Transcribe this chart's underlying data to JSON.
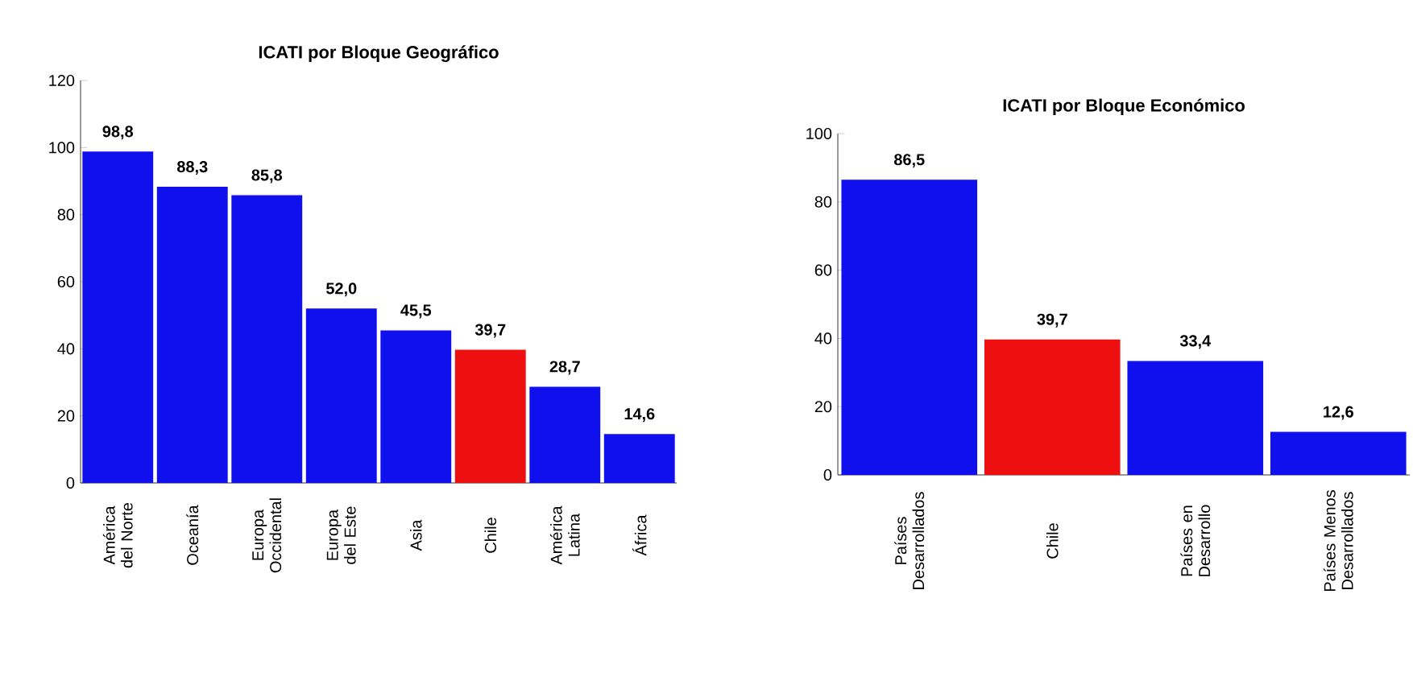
{
  "chart_data": [
    {
      "type": "bar",
      "title": "ICATI por Bloque Geográfico",
      "categories": [
        "América del Norte",
        "Oceanía",
        "Europa Occidental",
        "Europa del Este",
        "Asia",
        "Chile",
        "América Latina",
        "África"
      ],
      "values": [
        98.8,
        88.3,
        85.8,
        52.0,
        45.5,
        39.7,
        28.7,
        14.6
      ],
      "value_labels": [
        "98,8",
        "88,3",
        "85,8",
        "52,0",
        "45,5",
        "39,7",
        "28,7",
        "14,6"
      ],
      "colors": [
        "#1010ee",
        "#1010ee",
        "#1010ee",
        "#1010ee",
        "#1010ee",
        "#ee1010",
        "#1010ee",
        "#1010ee"
      ],
      "ylim": [
        0,
        120
      ],
      "yticks": [
        0,
        20,
        40,
        60,
        80,
        100,
        120
      ]
    },
    {
      "type": "bar",
      "title": "ICATI por Bloque Económico",
      "categories": [
        "Países Desarrollados",
        "Chile",
        "Países en Desarrollo",
        "Países Menos Desarrollados"
      ],
      "values": [
        86.5,
        39.7,
        33.4,
        12.6
      ],
      "value_labels": [
        "86,5",
        "39,7",
        "33,4",
        "12,6"
      ],
      "colors": [
        "#1010ee",
        "#ee1010",
        "#1010ee",
        "#1010ee"
      ],
      "ylim": [
        0,
        100
      ],
      "yticks": [
        0,
        20,
        40,
        60,
        80,
        100
      ]
    }
  ]
}
